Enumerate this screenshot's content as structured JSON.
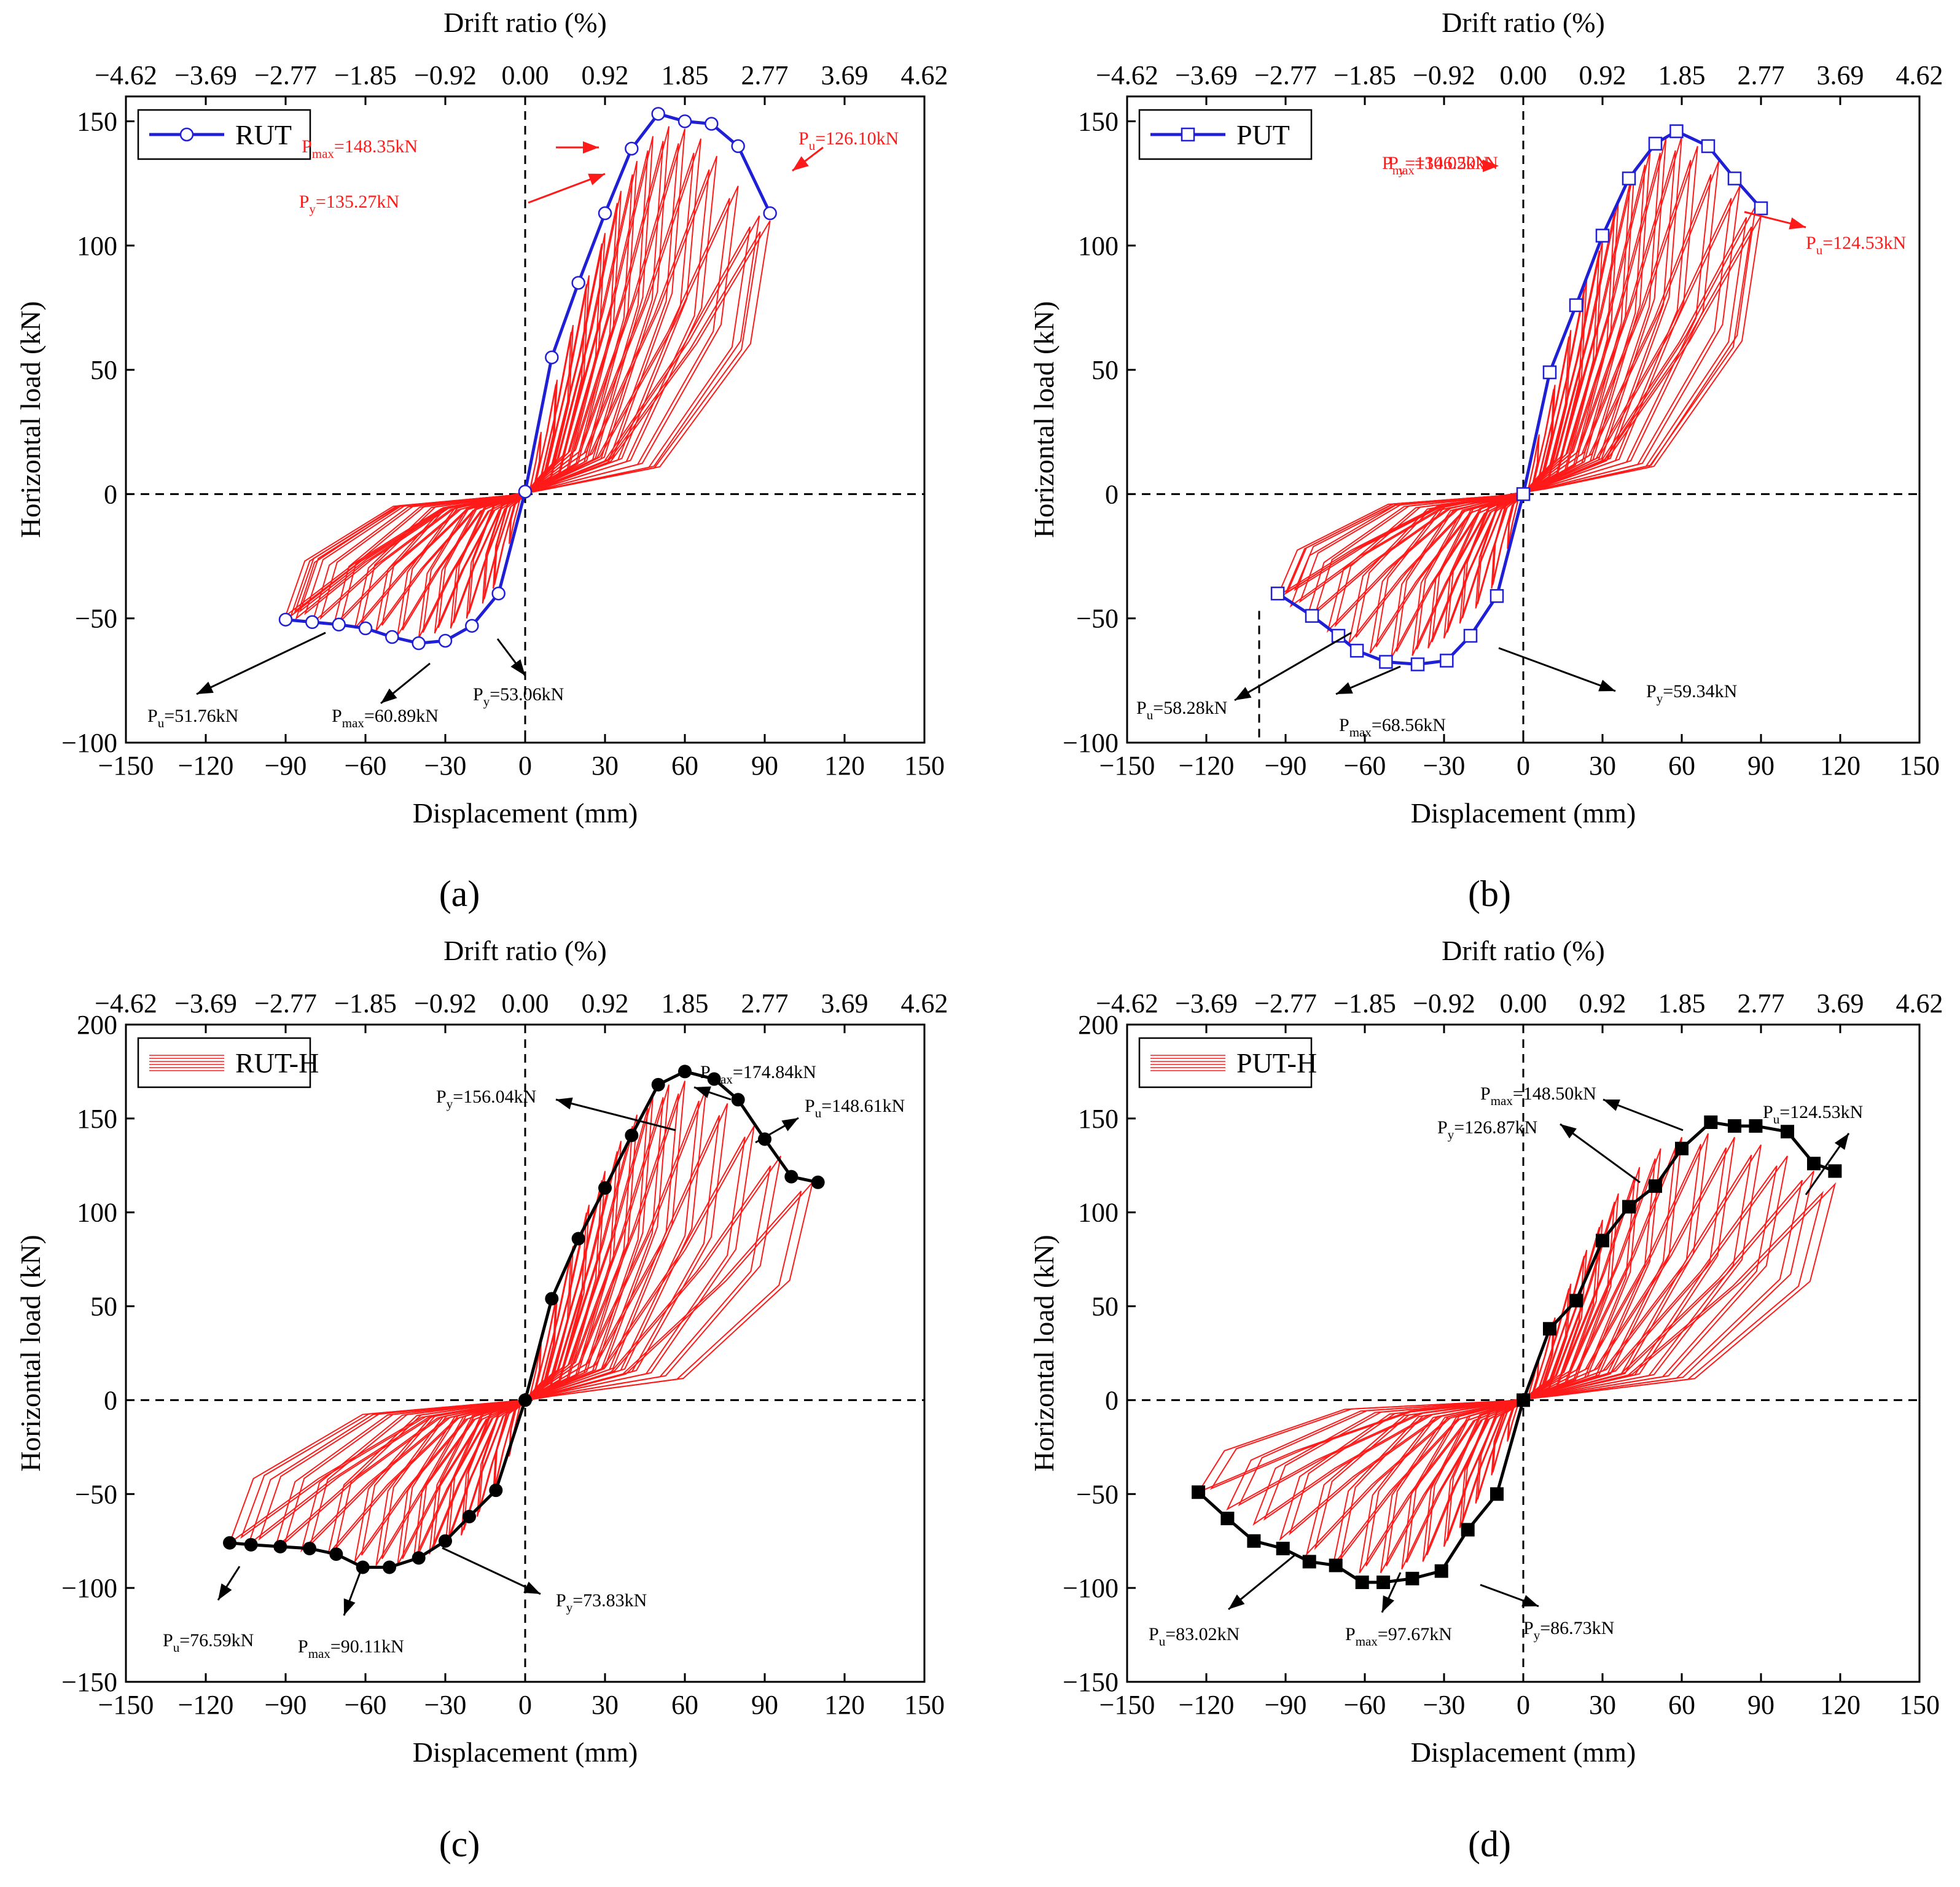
{
  "figure": {
    "panels": [
      "(a)",
      "(b)",
      "(c)",
      "(d)"
    ]
  },
  "chart_data": [
    {
      "panel_label": "(a)",
      "type": "line",
      "xlabel": "Displacement (mm)",
      "ylabel": "Horizontal load (kN)",
      "top_xlabel": "Drift ratio (%)",
      "xlim": [
        -150,
        150
      ],
      "ylim": [
        -100,
        160
      ],
      "xticks": [
        -150,
        -120,
        -90,
        -60,
        -30,
        0,
        30,
        60,
        90,
        120,
        150
      ],
      "yticks": [
        -100,
        -50,
        0,
        50,
        100,
        150
      ],
      "top_ticks": [
        "−4.62",
        "−3.69",
        "−2.77",
        "−1.85",
        "−0.92",
        "0.00",
        "0.92",
        "1.85",
        "2.77",
        "3.69",
        "4.62"
      ],
      "legend": "RUT",
      "legend_style": "envelope",
      "envelope_color": "#1f1fd6",
      "marker": "circle-open",
      "hyst_color": "#ff1a1a",
      "annotation_color": "#ff1a1a",
      "neg_annotation_color": "#000000",
      "envelope": {
        "x": [
          -90,
          -80,
          -70,
          -60,
          -50,
          -40,
          -30,
          -20,
          -10,
          0,
          10,
          20,
          30,
          40,
          50,
          60,
          70,
          80,
          92
        ],
        "y": [
          -50.5,
          -51.5,
          -52.5,
          -54,
          -57.5,
          -60,
          -59,
          -53,
          -40,
          1,
          55,
          85,
          113,
          139,
          153,
          150,
          149,
          140,
          113
        ]
      },
      "hysteresis_peaks": [
        [
          6,
          25,
          -6,
          -20
        ],
        [
          12,
          46,
          -12,
          -38
        ],
        [
          18,
          68,
          -16,
          -44
        ],
        [
          24,
          88,
          -22,
          -50
        ],
        [
          30,
          105,
          -28,
          -54
        ],
        [
          36,
          122,
          -34,
          -56
        ],
        [
          42,
          134,
          -40,
          -58
        ],
        [
          48,
          144,
          -48,
          -57
        ],
        [
          54,
          148,
          -56,
          -55
        ],
        [
          60,
          147,
          -64,
          -54
        ],
        [
          66,
          143,
          -72,
          -53
        ],
        [
          72,
          136,
          -80,
          -52
        ],
        [
          80,
          124,
          -86,
          -50
        ],
        [
          88,
          112,
          -90,
          -49
        ],
        [
          92,
          110,
          -88,
          -49
        ]
      ],
      "annotations": [
        {
          "base": "P",
          "sub": "max",
          "rest": "=148.35kN"
        },
        {
          "base": "P",
          "sub": "y",
          "rest": "=135.27kN"
        },
        {
          "base": "P",
          "sub": "u",
          "rest": "=126.10kN"
        },
        {
          "base": "P",
          "sub": "u",
          "rest": "=51.76kN"
        },
        {
          "base": "P",
          "sub": "max",
          "rest": "=60.89kN"
        },
        {
          "base": "P",
          "sub": "y",
          "rest": "=53.06kN"
        }
      ]
    },
    {
      "panel_label": "(b)",
      "type": "line",
      "xlabel": "Displacement (mm)",
      "ylabel": "Horizontal load (kN)",
      "top_xlabel": "Drift ratio (%)",
      "xlim": [
        -150,
        150
      ],
      "ylim": [
        -100,
        160
      ],
      "xticks": [
        -150,
        -120,
        -90,
        -60,
        -30,
        0,
        30,
        60,
        90,
        120,
        150
      ],
      "yticks": [
        -100,
        -50,
        0,
        50,
        100,
        150
      ],
      "top_ticks": [
        "−4.62",
        "−3.69",
        "−2.77",
        "−1.85",
        "−0.92",
        "0.00",
        "0.92",
        "1.85",
        "2.77",
        "3.69",
        "4.62"
      ],
      "legend": "PUT",
      "legend_style": "envelope",
      "envelope_color": "#1f1fd6",
      "marker": "square-open",
      "hyst_color": "#ff1a1a",
      "annotation_color": "#ff1a1a",
      "neg_annotation_color": "#000000",
      "envelope": {
        "x": [
          -93,
          -80,
          -70,
          -63,
          -52,
          -40,
          -29,
          -20,
          -10,
          0,
          10,
          20,
          30,
          40,
          50,
          58,
          70,
          80,
          90
        ],
        "y": [
          -40,
          -49,
          -57,
          -63,
          -67.5,
          -68.5,
          -67,
          -57,
          -41,
          0,
          49,
          76,
          104,
          127,
          141,
          146,
          140,
          127,
          115
        ]
      },
      "hysteresis_peaks": [
        [
          6,
          24,
          -6,
          -22
        ],
        [
          12,
          44,
          -12,
          -38
        ],
        [
          18,
          66,
          -18,
          -46
        ],
        [
          24,
          86,
          -24,
          -52
        ],
        [
          30,
          102,
          -30,
          -58
        ],
        [
          36,
          118,
          -36,
          -62
        ],
        [
          42,
          130,
          -42,
          -65
        ],
        [
          48,
          138,
          -50,
          -66
        ],
        [
          54,
          143,
          -58,
          -64
        ],
        [
          60,
          144,
          -66,
          -60
        ],
        [
          66,
          140,
          -74,
          -55
        ],
        [
          74,
          134,
          -82,
          -50
        ],
        [
          82,
          124,
          -88,
          -45
        ],
        [
          88,
          116,
          -93,
          -41
        ],
        [
          90,
          112,
          -90,
          -40
        ]
      ],
      "annotations": [
        {
          "base": "P",
          "sub": "y",
          "rest": "=130.02kN"
        },
        {
          "base": "P",
          "sub": "max",
          "rest": "=146.50kN"
        },
        {
          "base": "P",
          "sub": "u",
          "rest": "=124.53kN"
        },
        {
          "base": "P",
          "sub": "u",
          "rest": "=58.28kN"
        },
        {
          "base": "P",
          "sub": "max",
          "rest": "=68.56kN"
        },
        {
          "base": "P",
          "sub": "y",
          "rest": "=59.34kN"
        }
      ]
    },
    {
      "panel_label": "(c)",
      "type": "line",
      "xlabel": "Displacement (mm)",
      "ylabel": "Horizontal load (kN)",
      "top_xlabel": "Drift ratio (%)",
      "xlim": [
        -150,
        150
      ],
      "ylim": [
        -150,
        200
      ],
      "xticks": [
        -150,
        -120,
        -90,
        -60,
        -30,
        0,
        30,
        60,
        90,
        120,
        150
      ],
      "yticks": [
        -150,
        -100,
        -50,
        0,
        50,
        100,
        150,
        200
      ],
      "top_ticks": [
        "−4.62",
        "−3.69",
        "−2.77",
        "−1.85",
        "−0.92",
        "0.00",
        "0.92",
        "1.85",
        "2.77",
        "3.69",
        "4.62"
      ],
      "legend": "RUT-H",
      "legend_style": "hyst",
      "envelope_color": "#000000",
      "marker": "circle-filled",
      "hyst_color": "#ff1a1a",
      "annotation_color": "#000000",
      "neg_annotation_color": "#000000",
      "envelope": {
        "x": [
          -111,
          -103,
          -92,
          -81,
          -71,
          -61,
          -51,
          -40,
          -30,
          -21,
          -11,
          0,
          10,
          20,
          30,
          40,
          50,
          60,
          71,
          80,
          90,
          100,
          110
        ],
        "y": [
          -76,
          -77,
          -78,
          -79,
          -82,
          -89,
          -89,
          -84,
          -75,
          -62,
          -48,
          0,
          54,
          86,
          113,
          141,
          168,
          175,
          171,
          160,
          139,
          119,
          116
        ]
      },
      "hysteresis_peaks": [
        [
          6,
          30,
          -6,
          -30
        ],
        [
          12,
          56,
          -12,
          -50
        ],
        [
          18,
          82,
          -18,
          -62
        ],
        [
          24,
          104,
          -24,
          -72
        ],
        [
          30,
          122,
          -30,
          -78
        ],
        [
          36,
          138,
          -36,
          -82
        ],
        [
          42,
          152,
          -42,
          -86
        ],
        [
          48,
          162,
          -48,
          -88
        ],
        [
          54,
          168,
          -56,
          -88
        ],
        [
          60,
          170,
          -64,
          -86
        ],
        [
          68,
          166,
          -74,
          -82
        ],
        [
          76,
          158,
          -84,
          -80
        ],
        [
          86,
          146,
          -94,
          -79
        ],
        [
          96,
          130,
          -104,
          -77
        ],
        [
          108,
          116,
          -111,
          -76
        ]
      ],
      "annotations": [
        {
          "base": "P",
          "sub": "y",
          "rest": "=156.04kN"
        },
        {
          "base": "P",
          "sub": "max",
          "rest": "=174.84kN"
        },
        {
          "base": "P",
          "sub": "u",
          "rest": "=148.61kN"
        },
        {
          "base": "P",
          "sub": "u",
          "rest": "=76.59kN"
        },
        {
          "base": "P",
          "sub": "max",
          "rest": "=90.11kN"
        },
        {
          "base": "P",
          "sub": "y",
          "rest": "=73.83kN"
        }
      ]
    },
    {
      "panel_label": "(d)",
      "type": "line",
      "xlabel": "Displacement (mm)",
      "ylabel": "Horizontal load (kN)",
      "top_xlabel": "Drift ratio (%)",
      "xlim": [
        -150,
        150
      ],
      "ylim": [
        -150,
        200
      ],
      "xticks": [
        -150,
        -120,
        -90,
        -60,
        -30,
        0,
        30,
        60,
        90,
        120,
        150
      ],
      "yticks": [
        -150,
        -100,
        -50,
        0,
        50,
        100,
        150,
        200
      ],
      "top_ticks": [
        "−4.62",
        "−3.69",
        "−2.77",
        "−1.85",
        "−0.92",
        "0.00",
        "0.92",
        "1.85",
        "2.77",
        "3.69",
        "4.62"
      ],
      "legend": "PUT-H",
      "legend_style": "hyst",
      "envelope_color": "#000000",
      "marker": "square-filled",
      "hyst_color": "#ff1a1a",
      "annotation_color": "#000000",
      "neg_annotation_color": "#000000",
      "envelope": {
        "x": [
          -123,
          -112,
          -102,
          -91,
          -81,
          -71,
          -61,
          -53,
          -42,
          -31,
          -21,
          -10,
          0,
          10,
          20,
          30,
          40,
          50,
          60,
          71,
          80,
          88,
          100,
          110,
          118
        ],
        "y": [
          -49,
          -63,
          -75,
          -79,
          -86,
          -88,
          -97,
          -97,
          -95,
          -91,
          -69,
          -50,
          0,
          38,
          53,
          85,
          103,
          114,
          134,
          148,
          146,
          146,
          143,
          126,
          122
        ]
      },
      "hysteresis_peaks": [
        [
          6,
          24,
          -6,
          -22
        ],
        [
          12,
          44,
          -12,
          -40
        ],
        [
          18,
          62,
          -18,
          -55
        ],
        [
          24,
          80,
          -24,
          -68
        ],
        [
          30,
          96,
          -30,
          -78
        ],
        [
          36,
          110,
          -38,
          -86
        ],
        [
          44,
          124,
          -46,
          -90
        ],
        [
          52,
          134,
          -54,
          -92
        ],
        [
          60,
          140,
          -62,
          -92
        ],
        [
          70,
          142,
          -72,
          -88
        ],
        [
          80,
          140,
          -82,
          -82
        ],
        [
          90,
          136,
          -92,
          -74
        ],
        [
          100,
          130,
          -102,
          -66
        ],
        [
          110,
          122,
          -112,
          -58
        ],
        [
          118,
          115,
          -123,
          -49
        ]
      ],
      "annotations": [
        {
          "base": "P",
          "sub": "max",
          "rest": "=148.50kN"
        },
        {
          "base": "P",
          "sub": "y",
          "rest": "=126.87kN"
        },
        {
          "base": "P",
          "sub": "u",
          "rest": "=124.53kN"
        },
        {
          "base": "P",
          "sub": "u",
          "rest": "=83.02kN"
        },
        {
          "base": "P",
          "sub": "max",
          "rest": "=97.67kN"
        },
        {
          "base": "P",
          "sub": "y",
          "rest": "=86.73kN"
        }
      ]
    }
  ]
}
